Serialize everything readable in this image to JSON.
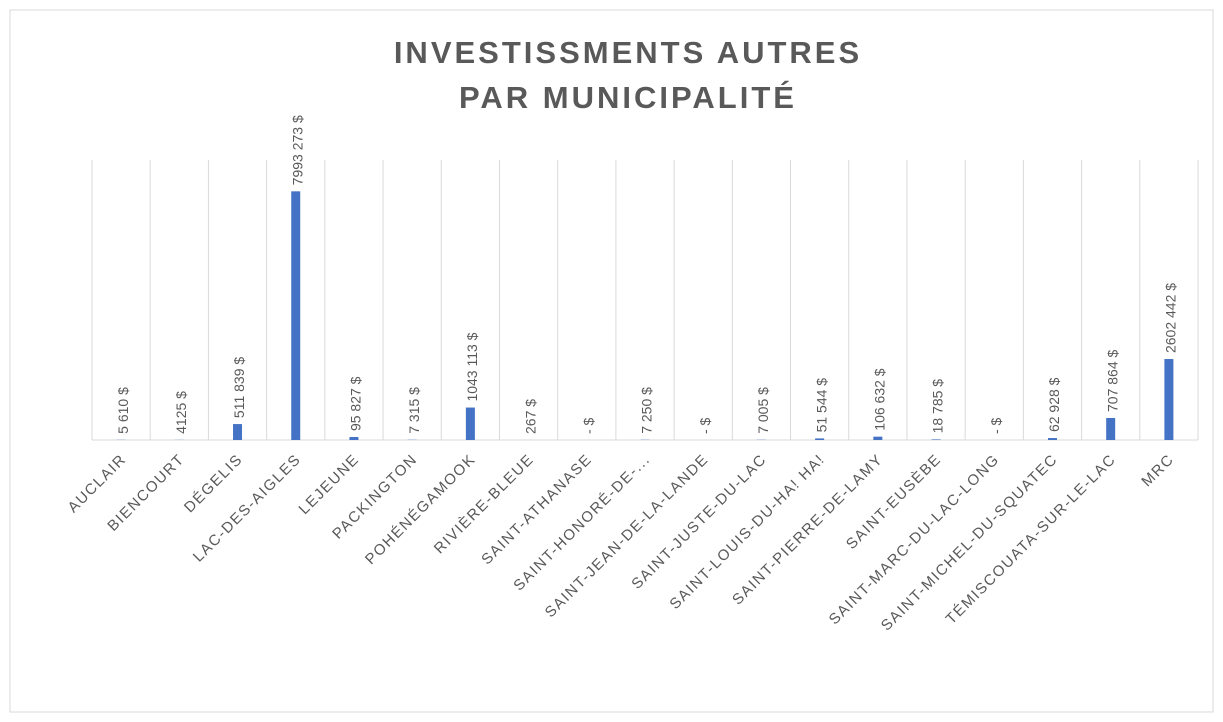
{
  "chart_data": {
    "type": "bar",
    "title": [
      "INVESTISSMENTS  AUTRES",
      "PAR MUNICIPALITÉ"
    ],
    "categories": [
      "AUCLAIR",
      "BIENCOURT",
      "DÉGELIS",
      "LAC-DES-AIGLES",
      "LEJEUNE",
      "PACKINGTON",
      "POHÉNÉGAMOOK",
      "RIVIÈRE-BLEUE",
      "SAINT-ATHANASE",
      "SAINT-HONORÉ-DE-...",
      "SAINT-JEAN-DE-LA-LANDE",
      "SAINT-JUSTE-DU-LAC",
      "SAINT-LOUIS-DU-HA! HA!",
      "SAINT-PIERRE-DE-LAMY",
      "SAINT-EUSÈBE",
      "SAINT-MARC-DU-LAC-LONG",
      "SAINT-MICHEL-DU-SQUATEC",
      "TÉMISCOUATA-SUR-LE-LAC",
      "MRC"
    ],
    "values": [
      5610,
      4125,
      511839,
      7993273,
      95827,
      7315,
      1043113,
      267,
      0,
      7250,
      0,
      7005,
      51544,
      106632,
      18785,
      0,
      62928,
      707864,
      2602442
    ],
    "value_labels": [
      "5 610 $",
      "4125 $",
      "511 839 $",
      "7993 273 $",
      "95 827 $",
      "7 315 $",
      "1043 113 $",
      "267 $",
      "- $",
      "7 250 $",
      "- $",
      "7 005 $",
      "51 544 $",
      "106 632 $",
      "18 785 $",
      "- $",
      "62 928 $",
      "707 864 $",
      "2602 442 $"
    ],
    "color": "#4472c4",
    "ylim": [
      0,
      9000000
    ]
  }
}
